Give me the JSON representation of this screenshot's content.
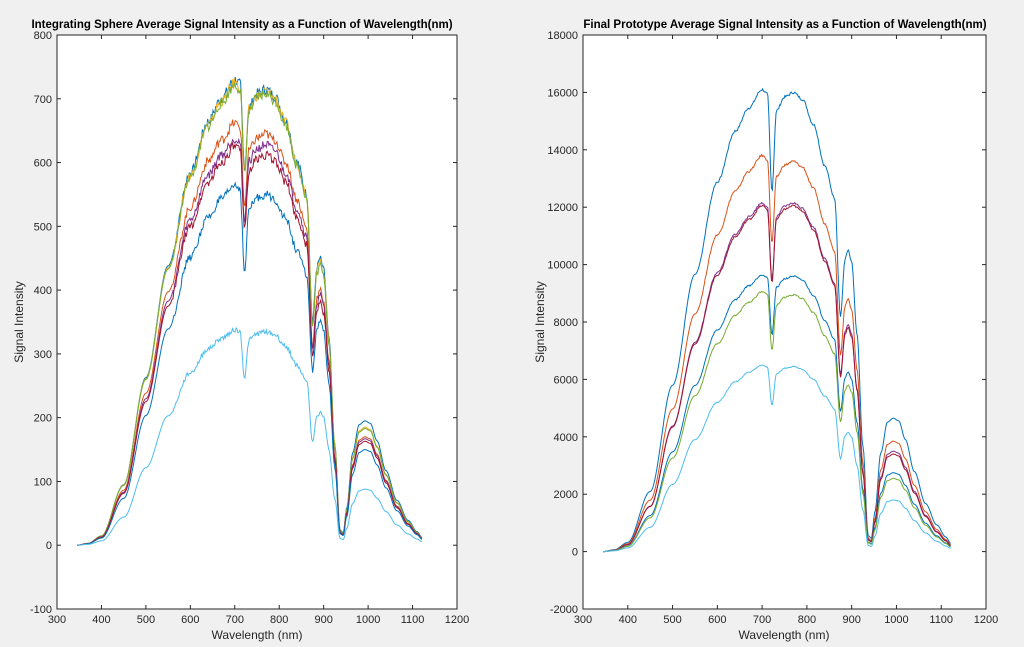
{
  "chart_data": [
    {
      "type": "line",
      "title": "Integrating Sphere Average Signal Intensity as a Function of Wavelength(nm)",
      "xlabel": "Wavelength (nm)",
      "ylabel": "Signal Intensity",
      "xlim": [
        300,
        1200
      ],
      "ylim": [
        -100,
        800
      ],
      "xticks": [
        300,
        400,
        500,
        600,
        700,
        800,
        900,
        1000,
        1100,
        1200
      ],
      "yticks": [
        -100,
        0,
        100,
        200,
        300,
        400,
        500,
        600,
        700,
        800
      ],
      "grid": false,
      "legend": "none",
      "x_range": [
        345,
        1122
      ],
      "series": [
        {
          "color": "#0072BD",
          "peak1": 730,
          "dip": 650,
          "peak2": 715,
          "shoulder": 450,
          "ir": 195
        },
        {
          "color": "#EDB120",
          "peak1": 725,
          "dip": 645,
          "peak2": 712,
          "shoulder": 445,
          "ir": 185
        },
        {
          "color": "#77AC30",
          "peak1": 722,
          "dip": 642,
          "peak2": 708,
          "shoulder": 440,
          "ir": 183
        },
        {
          "color": "#D95319",
          "peak1": 662,
          "dip": 585,
          "peak2": 645,
          "shoulder": 400,
          "ir": 170
        },
        {
          "color": "#7E2F8E",
          "peak1": 638,
          "dip": 560,
          "peak2": 628,
          "shoulder": 392,
          "ir": 167
        },
        {
          "color": "#A2142F",
          "peak1": 625,
          "dip": 545,
          "peak2": 612,
          "shoulder": 380,
          "ir": 163
        },
        {
          "color": "#0072BD",
          "peak1": 565,
          "dip": 470,
          "peak2": 550,
          "shoulder": 350,
          "ir": 150
        },
        {
          "color": "#4DBEEE",
          "peak1": 338,
          "dip": 288,
          "peak2": 335,
          "shoulder": 208,
          "ir": 88
        }
      ]
    },
    {
      "type": "line",
      "title": "Final Prototype Average Signal Intensity as a Function of Wavelength(nm)",
      "xlabel": "Wavelength (nm)",
      "ylabel": "Signal Intensity",
      "xlim": [
        300,
        1200
      ],
      "ylim": [
        -2000,
        18000
      ],
      "xticks": [
        300,
        400,
        500,
        600,
        700,
        800,
        900,
        1000,
        1100,
        1200
      ],
      "yticks": [
        -2000,
        0,
        2000,
        4000,
        6000,
        8000,
        10000,
        12000,
        14000,
        16000,
        18000
      ],
      "grid": false,
      "legend": "none",
      "x_range": [
        345,
        1122
      ],
      "series": [
        {
          "color": "#0072BD",
          "peak1": 16100,
          "dip": 13800,
          "peak2": 16000,
          "shoulder": 10500,
          "ir": 4650
        },
        {
          "color": "#D95319",
          "peak1": 13800,
          "dip": 11800,
          "peak2": 13600,
          "shoulder": 8800,
          "ir": 3850
        },
        {
          "color": "#7E2F8E",
          "peak1": 12150,
          "dip": 10400,
          "peak2": 12150,
          "shoulder": 7900,
          "ir": 3500
        },
        {
          "color": "#A2142F",
          "peak1": 12050,
          "dip": 10300,
          "peak2": 12050,
          "shoulder": 7800,
          "ir": 3400
        },
        {
          "color": "#0072BD",
          "peak1": 9650,
          "dip": 8300,
          "peak2": 9600,
          "shoulder": 6250,
          "ir": 2750
        },
        {
          "color": "#77AC30",
          "peak1": 9050,
          "dip": 7700,
          "peak2": 8950,
          "shoulder": 5800,
          "ir": 2550
        },
        {
          "color": "#4DBEEE",
          "peak1": 6500,
          "dip": 5600,
          "peak2": 6450,
          "shoulder": 4150,
          "ir": 1800
        }
      ]
    }
  ]
}
